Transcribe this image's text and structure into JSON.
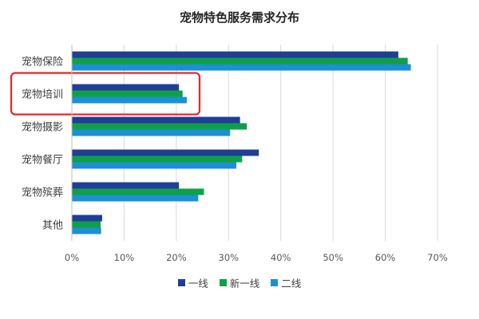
{
  "chart_data": {
    "type": "bar",
    "orientation": "horizontal",
    "title": "宠物特色服务需求分布",
    "categories": [
      "宠物保险",
      "宠物培训",
      "宠物摄影",
      "宠物餐厅",
      "宠物殡葬",
      "其他"
    ],
    "series": [
      {
        "name": "一线",
        "color": "#1F3F96",
        "values": [
          62.5,
          20.5,
          32.2,
          35.8,
          20.5,
          5.8
        ]
      },
      {
        "name": "新一线",
        "color": "#0FA047",
        "values": [
          64.3,
          21.2,
          33.5,
          32.6,
          25.3,
          5.5
        ]
      },
      {
        "name": "二线",
        "color": "#1C8FD6",
        "values": [
          64.9,
          22.0,
          30.3,
          31.5,
          24.2,
          5.6
        ]
      }
    ],
    "xlim": [
      0,
      70
    ],
    "x_ticks": [
      "0%",
      "10%",
      "20%",
      "30%",
      "40%",
      "50%",
      "60%",
      "70%"
    ],
    "legend_position": "bottom",
    "grid": "vertical",
    "highlighted_category": "宠物培训",
    "highlight_color": "#E8262A"
  }
}
